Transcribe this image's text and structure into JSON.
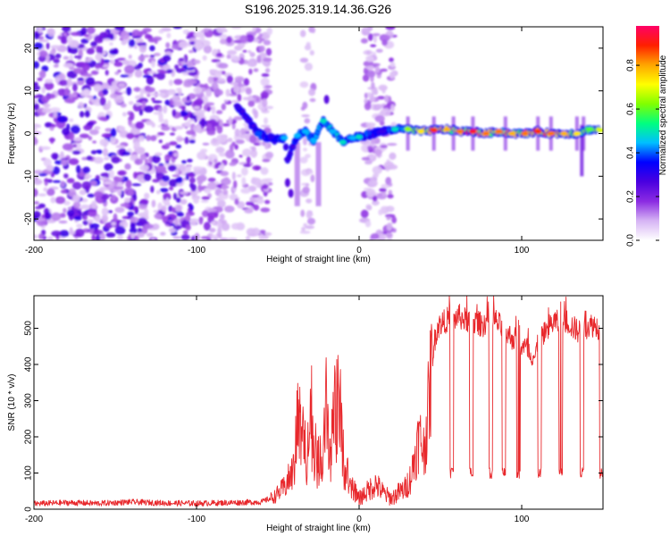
{
  "title": "S196.2025.319.14.36.G26",
  "chart_data": [
    {
      "type": "heatmap",
      "title": "S196.2025.319.14.36.G26",
      "xlabel": "Height of straight line (km)",
      "ylabel": "Frequency (Hz)",
      "xlim": [
        -200,
        150
      ],
      "ylim": [
        -25,
        25
      ],
      "xticks": [
        -200,
        -100,
        0,
        100
      ],
      "yticks": [
        -20,
        -10,
        0,
        10,
        20
      ],
      "colorbar": {
        "label": "Normalized spectral amplitude",
        "range": [
          0,
          0.98
        ],
        "ticks": [
          "0.0",
          "0.2",
          "0.4",
          "0.6",
          "0.8"
        ],
        "colors": [
          "#ffffff",
          "#d6b4f4",
          "#8b2be2",
          "#4a00e0",
          "#0000ff",
          "#00bfff",
          "#00ff80",
          "#80ff00",
          "#ffff00",
          "#ffa500",
          "#ff2000",
          "#ff0066"
        ]
      },
      "ridge": [
        {
          "x": -96,
          "f": 2.5,
          "a": 0.35
        },
        {
          "x": -75,
          "f": 6.5,
          "a": 0.3
        },
        {
          "x": -68,
          "f": 3.0,
          "a": 0.3
        },
        {
          "x": -62,
          "f": 0.0,
          "a": 0.4
        },
        {
          "x": -52,
          "f": -1.5,
          "a": 0.35
        },
        {
          "x": -46,
          "f": -1.0,
          "a": 0.45
        },
        {
          "x": -44,
          "f": -6.0,
          "a": 0.3
        },
        {
          "x": -38,
          "f": -0.5,
          "a": 0.45
        },
        {
          "x": -33,
          "f": 0.5,
          "a": 0.45
        },
        {
          "x": -28,
          "f": -1.5,
          "a": 0.45
        },
        {
          "x": -22,
          "f": 3.0,
          "a": 0.5
        },
        {
          "x": -16,
          "f": 0.5,
          "a": 0.45
        },
        {
          "x": -10,
          "f": -2.0,
          "a": 0.5
        },
        {
          "x": -4,
          "f": -1.0,
          "a": 0.45
        },
        {
          "x": 0,
          "f": -0.8,
          "a": 0.5
        },
        {
          "x": 14,
          "f": 0.5,
          "a": 0.3
        },
        {
          "x": 22,
          "f": 1.0,
          "a": 0.5
        },
        {
          "x": 30,
          "f": 1.0,
          "a": 0.65
        },
        {
          "x": 38,
          "f": 0.5,
          "a": 0.75
        },
        {
          "x": 46,
          "f": 0.8,
          "a": 0.9
        },
        {
          "x": 54,
          "f": 1.0,
          "a": 0.8
        },
        {
          "x": 62,
          "f": 0.5,
          "a": 0.85
        },
        {
          "x": 70,
          "f": 0.5,
          "a": 0.95
        },
        {
          "x": 78,
          "f": 0.0,
          "a": 0.85
        },
        {
          "x": 86,
          "f": 0.5,
          "a": 0.85
        },
        {
          "x": 94,
          "f": 0.0,
          "a": 0.8
        },
        {
          "x": 102,
          "f": 0.0,
          "a": 0.85
        },
        {
          "x": 110,
          "f": 0.5,
          "a": 0.9
        },
        {
          "x": 118,
          "f": 0.0,
          "a": 0.85
        },
        {
          "x": 126,
          "f": 0.0,
          "a": 0.8
        },
        {
          "x": 134,
          "f": 0.0,
          "a": 0.75
        },
        {
          "x": 142,
          "f": 1.0,
          "a": 0.6
        },
        {
          "x": 148,
          "f": 0.8,
          "a": 0.7
        }
      ]
    },
    {
      "type": "line",
      "xlabel": "Height of straight line (km)",
      "ylabel": "SNR (10 * v/v)",
      "xlim": [
        -200,
        150
      ],
      "ylim": [
        0,
        590
      ],
      "xticks": [
        -200,
        -100,
        0,
        100
      ],
      "yticks": [
        0,
        100,
        200,
        300,
        400,
        500
      ],
      "series": [
        {
          "name": "SNR",
          "color": "#e8282c",
          "x": [
            -200,
            -180,
            -160,
            -140,
            -120,
            -100,
            -80,
            -60,
            -52,
            -46,
            -40,
            -38,
            -35,
            -32,
            -29,
            -26,
            -22,
            -20,
            -18,
            -15,
            -12,
            -10,
            -6,
            -2,
            0,
            4,
            10,
            16,
            20,
            24,
            28,
            32,
            34,
            37,
            40,
            43,
            45,
            47,
            48,
            50,
            53,
            56,
            58,
            61,
            64,
            68,
            72,
            76,
            80,
            84,
            88,
            92,
            96,
            100,
            104,
            108,
            112,
            116,
            120,
            124,
            128,
            132,
            136,
            140,
            144,
            148,
            150
          ],
          "y": [
            15,
            18,
            16,
            20,
            17,
            16,
            18,
            20,
            35,
            60,
            110,
            250,
            180,
            140,
            220,
            120,
            160,
            250,
            120,
            260,
            300,
            130,
            60,
            40,
            30,
            45,
            70,
            40,
            30,
            45,
            55,
            90,
            140,
            200,
            160,
            300,
            420,
            480,
            500,
            510,
            520,
            530,
            520,
            535,
            525,
            520,
            515,
            510,
            525,
            520,
            500,
            480,
            470,
            450,
            440,
            420,
            480,
            500,
            520,
            510,
            520,
            500,
            490,
            505,
            510,
            500,
            495
          ]
        }
      ],
      "dropouts": [
        57,
        69,
        81,
        89,
        98,
        111,
        124,
        137,
        149
      ]
    }
  ]
}
